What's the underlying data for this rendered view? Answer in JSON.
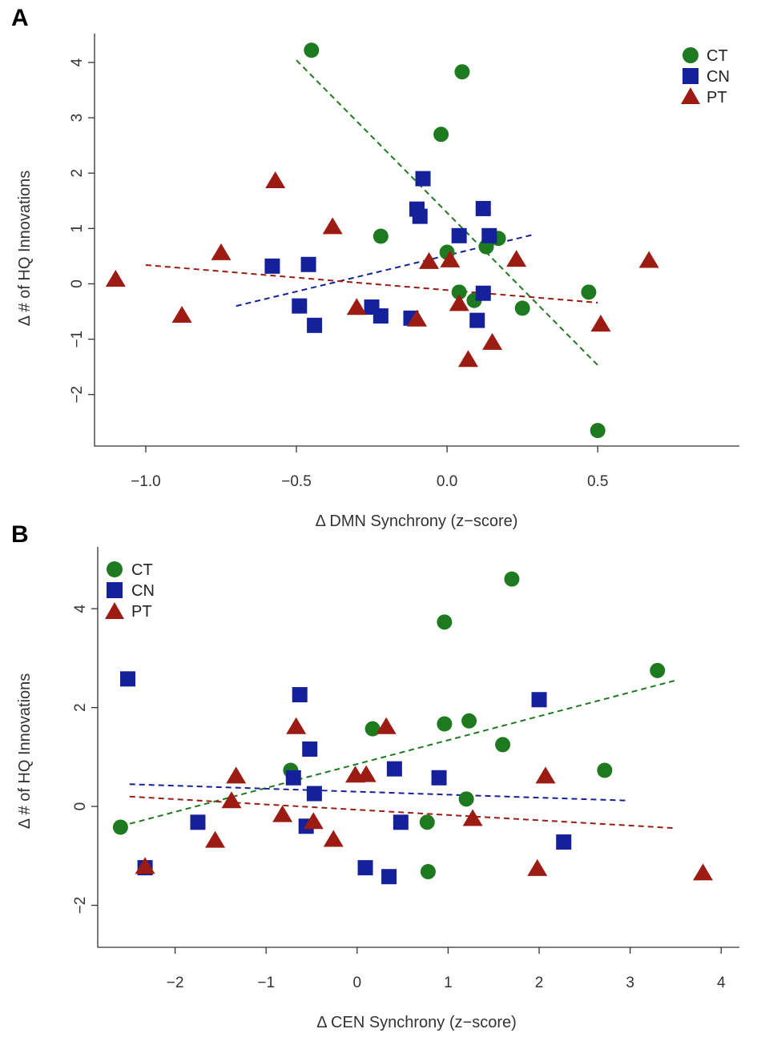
{
  "colors": {
    "CT": "#1e7a1e",
    "CN": "#14219a",
    "PT": "#9c1c14"
  },
  "chart_data": [
    {
      "panel": "A",
      "type": "scatter",
      "title": "",
      "xlabel": "Δ DMN Synchrony (z−score)",
      "ylabel": "Δ # of HQ Innovations",
      "xlim": [
        -1.17,
        0.97
      ],
      "ylim": [
        -2.93,
        4.52
      ],
      "xticks": [
        -1.0,
        -0.5,
        0.0,
        0.5
      ],
      "xtick_labels": [
        "−1.0",
        "−0.5",
        "0.0",
        "0.5"
      ],
      "yticks": [
        -2,
        -1,
        0,
        1,
        2,
        3,
        4
      ],
      "ytick_labels": [
        "−2",
        "−1",
        "0",
        "1",
        "2",
        "3",
        "4"
      ],
      "legend_position": "top-right",
      "series": [
        {
          "name": "CT",
          "label": "CT",
          "marker": "circle",
          "x": [
            -0.45,
            0.05,
            -0.02,
            -0.22,
            0.0,
            0.13,
            0.17,
            0.04,
            0.09,
            0.25,
            0.47,
            0.5
          ],
          "y": [
            4.22,
            3.83,
            2.7,
            0.86,
            0.57,
            0.67,
            0.82,
            -0.15,
            -0.3,
            -0.44,
            -0.15,
            -2.65
          ],
          "trend": [
            [
              -0.5,
              4.04
            ],
            [
              0.5,
              -1.47
            ]
          ]
        },
        {
          "name": "CN",
          "label": "CN",
          "marker": "square",
          "x": [
            -0.58,
            -0.46,
            -0.49,
            -0.44,
            -0.25,
            -0.22,
            -0.12,
            -0.08,
            -0.1,
            -0.09,
            0.04,
            0.12,
            0.14,
            0.12,
            0.1
          ],
          "y": [
            0.32,
            0.35,
            -0.4,
            -0.75,
            -0.42,
            -0.58,
            -0.62,
            1.9,
            1.35,
            1.22,
            0.87,
            1.36,
            0.87,
            -0.17,
            -0.66
          ],
          "trend": [
            [
              -0.7,
              -0.4
            ],
            [
              0.28,
              0.88
            ]
          ]
        },
        {
          "name": "PT",
          "label": "PT",
          "marker": "triangle",
          "x": [
            -1.1,
            -0.88,
            -0.75,
            -0.57,
            -0.38,
            -0.3,
            -0.06,
            -0.1,
            0.01,
            0.04,
            0.07,
            0.15,
            0.23,
            0.51,
            0.67
          ],
          "y": [
            0.07,
            -0.58,
            0.55,
            1.85,
            1.02,
            -0.44,
            0.39,
            -0.65,
            0.42,
            -0.37,
            -1.38,
            -1.07,
            0.43,
            -0.74,
            0.41
          ],
          "trend": [
            [
              -1.0,
              0.34
            ],
            [
              0.5,
              -0.34
            ]
          ]
        }
      ]
    },
    {
      "panel": "B",
      "type": "scatter",
      "title": "",
      "xlabel": "Δ CEN Synchrony (z−score)",
      "ylabel": "Δ # of HQ Innovations",
      "xlim": [
        -2.85,
        4.2
      ],
      "ylim": [
        -2.85,
        5.25
      ],
      "xticks": [
        -2,
        -1,
        0,
        1,
        2,
        3,
        4
      ],
      "xtick_labels": [
        "−2",
        "−1",
        "0",
        "1",
        "2",
        "3",
        "4"
      ],
      "yticks": [
        -2,
        0,
        2,
        4
      ],
      "ytick_labels": [
        "−2",
        "0",
        "2",
        "4"
      ],
      "legend_position": "top-left",
      "series": [
        {
          "name": "CT",
          "label": "CT",
          "marker": "circle",
          "x": [
            -2.6,
            -0.73,
            0.17,
            0.96,
            0.96,
            1.23,
            1.6,
            1.7,
            0.77,
            0.78,
            1.2,
            2.72,
            3.3
          ],
          "y": [
            -0.42,
            0.73,
            1.57,
            3.73,
            1.67,
            1.73,
            1.25,
            4.6,
            -0.32,
            -1.32,
            0.15,
            0.73,
            2.75
          ],
          "trend": [
            [
              -2.6,
              -0.4
            ],
            [
              3.5,
              2.55
            ]
          ]
        },
        {
          "name": "CN",
          "label": "CN",
          "marker": "square",
          "x": [
            -2.52,
            -2.33,
            -1.75,
            -0.7,
            -0.63,
            -0.52,
            -0.47,
            -0.56,
            0.09,
            0.35,
            0.41,
            0.48,
            0.9,
            2.0,
            2.27
          ],
          "y": [
            2.58,
            -1.24,
            -0.32,
            0.58,
            2.26,
            1.16,
            0.26,
            -0.4,
            -1.24,
            -1.42,
            0.76,
            -0.32,
            0.58,
            2.16,
            -0.72
          ],
          "trend": [
            [
              -2.5,
              0.45
            ],
            [
              2.95,
              0.12
            ]
          ]
        },
        {
          "name": "PT",
          "label": "PT",
          "marker": "triangle",
          "x": [
            -2.33,
            -1.56,
            -1.38,
            -1.33,
            -0.82,
            -0.67,
            -0.48,
            -0.26,
            -0.02,
            0.1,
            0.32,
            1.27,
            1.98,
            2.07,
            3.8
          ],
          "y": [
            -1.23,
            -0.7,
            0.1,
            0.6,
            -0.18,
            1.6,
            -0.32,
            -0.68,
            0.62,
            0.63,
            1.6,
            -0.26,
            -1.27,
            0.6,
            -1.36
          ],
          "trend": [
            [
              -2.5,
              0.2
            ],
            [
              3.5,
              -0.44
            ]
          ]
        }
      ]
    }
  ]
}
